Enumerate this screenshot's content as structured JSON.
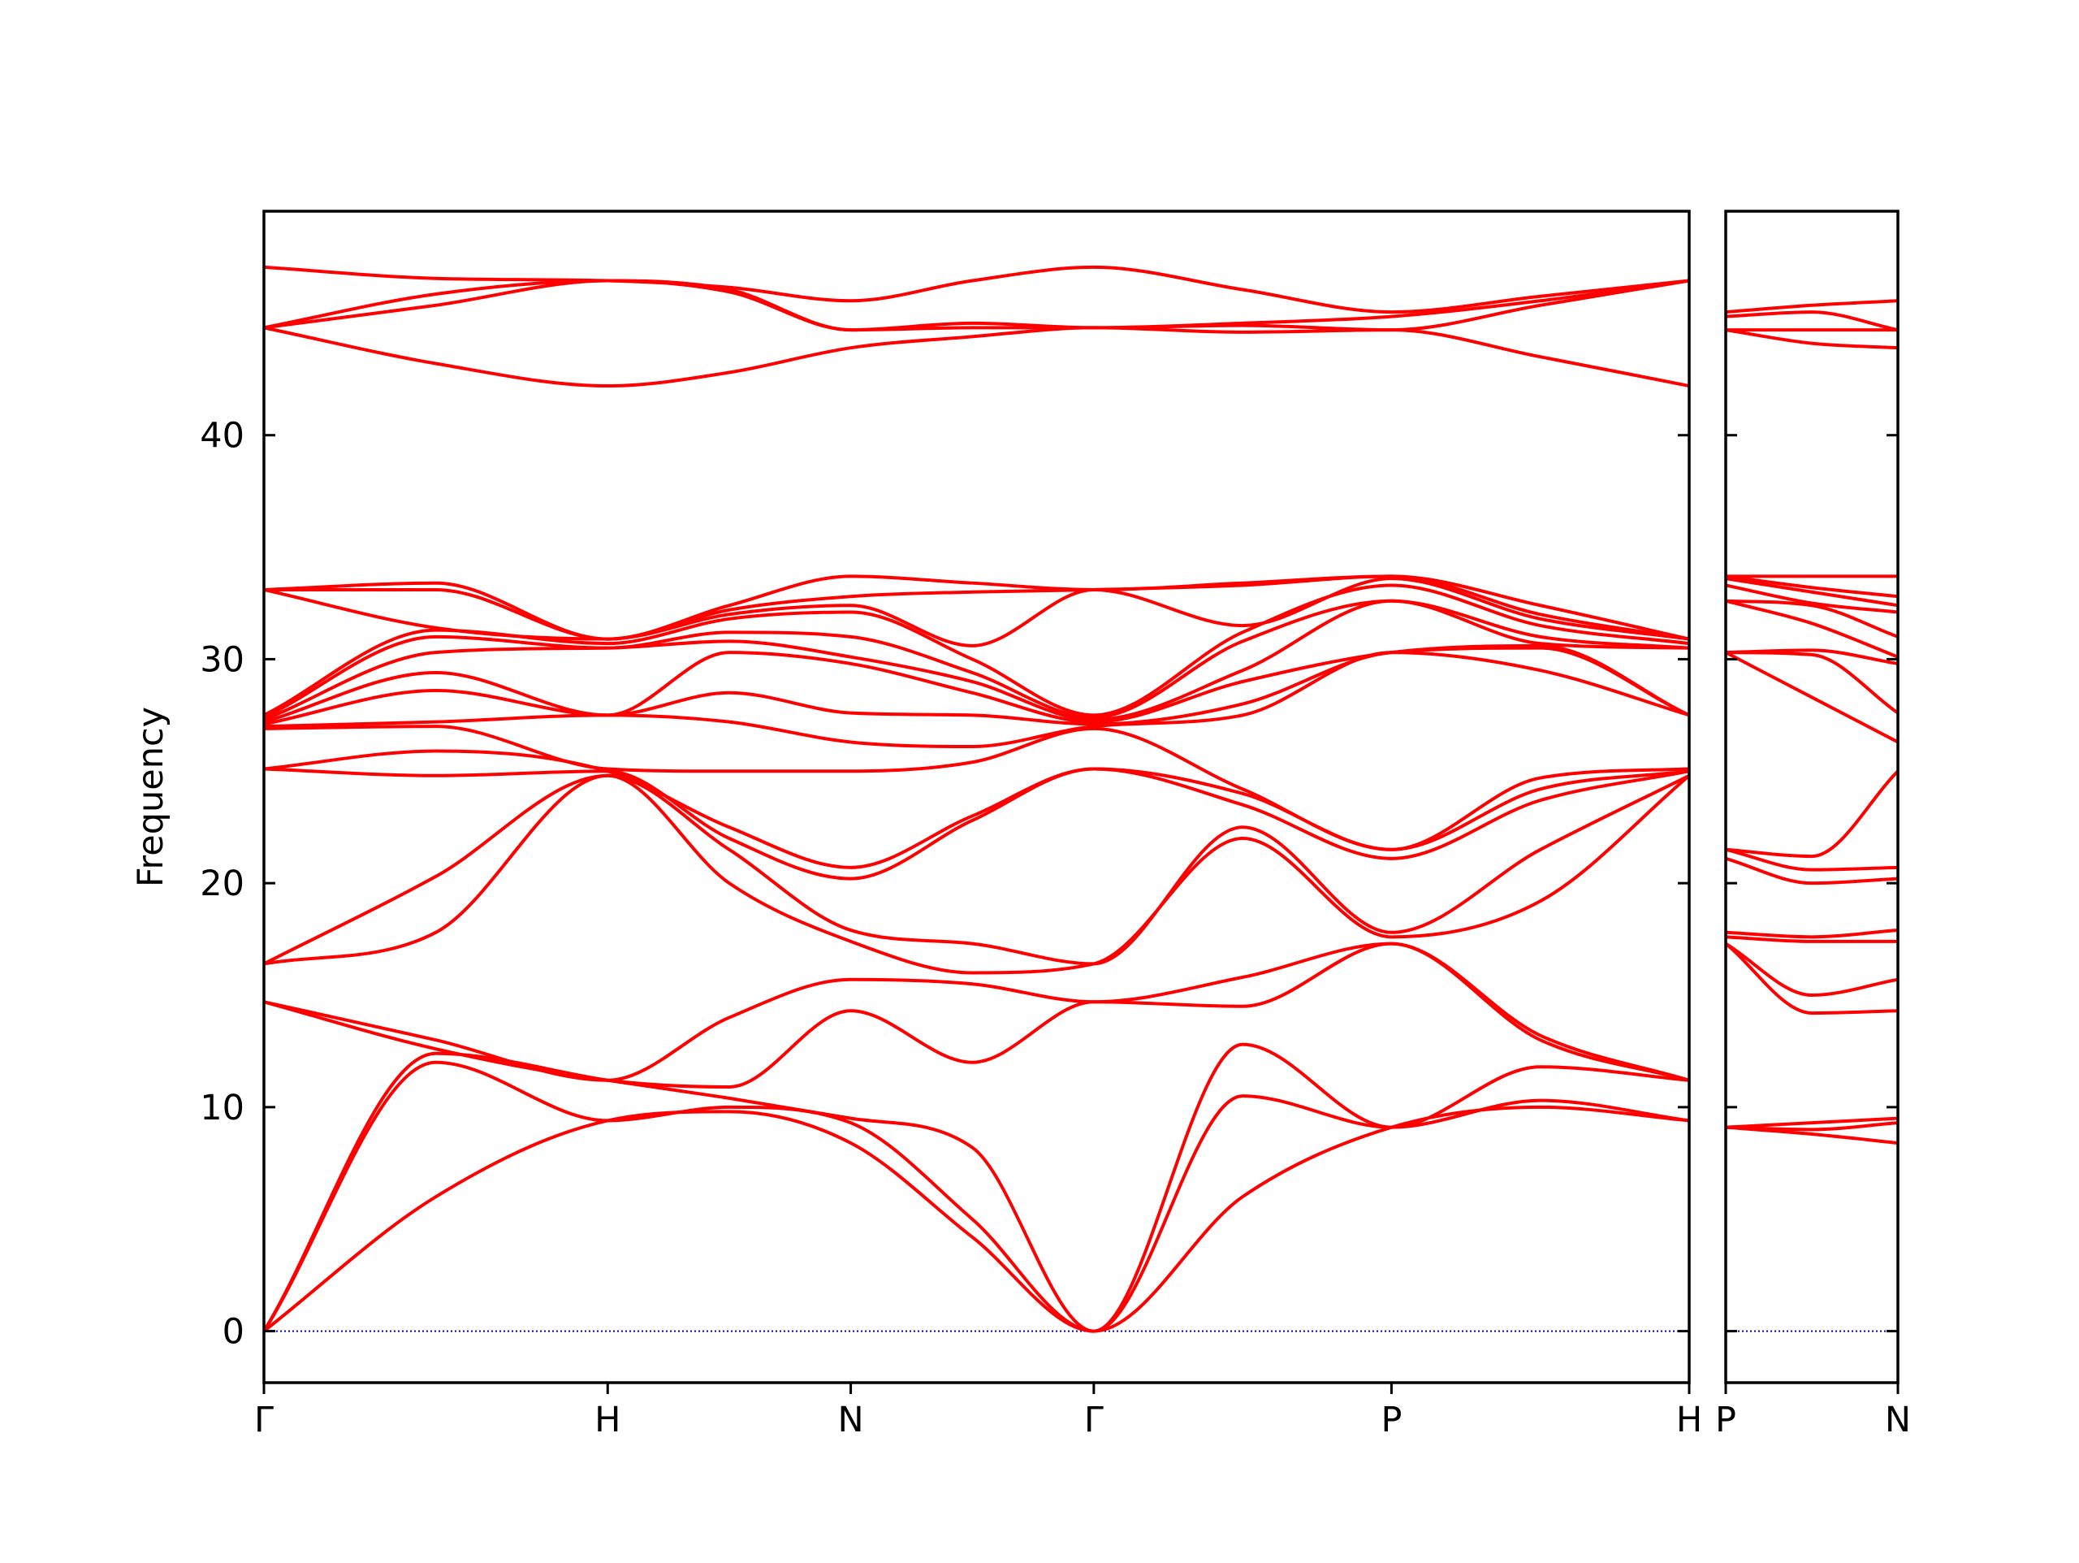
{
  "chart_data": [
    {
      "type": "line",
      "y_label": "Frequency",
      "color": "#ff0000",
      "reference_line": {
        "y": 0,
        "color": "#0000cc"
      },
      "xlim": [
        0,
        4.1463
      ],
      "ylim": [
        -2.3,
        50
      ],
      "yticks": [
        0,
        10,
        20,
        30,
        40
      ],
      "xticks": [
        {
          "value": 0,
          "label": "Γ"
        },
        {
          "value": 1,
          "label": "H"
        },
        {
          "value": 1.7071,
          "label": "N"
        },
        {
          "value": 2.4142,
          "label": "Γ"
        },
        {
          "value": 3.2802,
          "label": "P"
        },
        {
          "value": 4.1463,
          "label": "H"
        }
      ],
      "x": [
        0,
        0.5,
        1,
        1.3536,
        1.7071,
        2.0607,
        2.4142,
        2.8472,
        3.2802,
        3.7133,
        4.1463
      ],
      "series": [
        {
          "values": [
            0,
            6.0,
            9.4,
            9.8,
            8.4,
            4.2,
            0,
            6.0,
            9.1,
            10.0,
            9.4
          ]
        },
        {
          "values": [
            0,
            12.0,
            9.4,
            10.0,
            9.3,
            5.0,
            0,
            10.5,
            9.1,
            10.3,
            9.4
          ]
        },
        {
          "values": [
            0,
            12.4,
            11.2,
            10.4,
            9.5,
            8.2,
            0,
            12.8,
            9.1,
            11.8,
            11.2
          ]
        },
        {
          "values": [
            14.7,
            12.6,
            11.2,
            10.9,
            14.3,
            12.0,
            14.7,
            14.5,
            17.3,
            13.0,
            11.2
          ]
        },
        {
          "values": [
            14.7,
            13.0,
            11.2,
            14.0,
            15.7,
            15.5,
            14.7,
            15.8,
            17.3,
            13.2,
            11.2
          ]
        },
        {
          "values": [
            16.4,
            17.8,
            24.8,
            20.0,
            17.4,
            16.0,
            16.4,
            22.0,
            17.6,
            19.2,
            24.8
          ]
        },
        {
          "values": [
            16.4,
            20.3,
            24.8,
            21.5,
            17.9,
            17.3,
            16.4,
            22.5,
            17.8,
            21.5,
            24.8
          ]
        },
        {
          "values": [
            25.1,
            24.8,
            25.0,
            22.0,
            20.2,
            22.8,
            25.1,
            23.5,
            21.1,
            23.7,
            25.0
          ]
        },
        {
          "values": [
            25.1,
            25.9,
            25.0,
            22.5,
            20.7,
            23.0,
            25.1,
            24.0,
            21.5,
            24.2,
            25.0
          ]
        },
        {
          "values": [
            26.9,
            27.0,
            25.1,
            25.0,
            25.0,
            25.4,
            26.9,
            24.2,
            21.5,
            24.7,
            25.1
          ]
        },
        {
          "values": [
            27.0,
            27.2,
            27.5,
            27.2,
            26.3,
            26.1,
            27.0,
            27.5,
            30.3,
            29.5,
            27.5
          ]
        },
        {
          "values": [
            27.1,
            28.6,
            27.5,
            28.5,
            27.6,
            27.5,
            27.1,
            28.0,
            30.3,
            30.5,
            27.5
          ]
        },
        {
          "values": [
            27.2,
            29.4,
            27.5,
            30.3,
            29.8,
            28.5,
            27.2,
            29.0,
            30.3,
            30.6,
            27.5
          ]
        },
        {
          "values": [
            27.3,
            30.3,
            30.5,
            30.8,
            30.1,
            29.0,
            27.3,
            29.5,
            32.6,
            30.7,
            30.5
          ]
        },
        {
          "values": [
            27.4,
            31.0,
            30.5,
            31.2,
            31.0,
            29.4,
            27.4,
            30.8,
            32.6,
            31.0,
            30.5
          ]
        },
        {
          "values": [
            27.5,
            31.3,
            30.7,
            31.8,
            32.1,
            30.0,
            27.5,
            31.2,
            33.3,
            31.5,
            30.7
          ]
        },
        {
          "values": [
            33.1,
            31.4,
            30.9,
            32.0,
            32.4,
            30.6,
            33.1,
            31.5,
            33.6,
            31.8,
            30.9
          ]
        },
        {
          "values": [
            33.1,
            33.1,
            30.9,
            32.2,
            32.8,
            33.0,
            33.1,
            33.3,
            33.7,
            32.0,
            30.9
          ]
        },
        {
          "values": [
            33.1,
            33.4,
            30.9,
            32.4,
            33.7,
            33.4,
            33.1,
            33.4,
            33.7,
            32.4,
            30.9
          ]
        },
        {
          "values": [
            44.8,
            43.2,
            42.2,
            42.8,
            43.9,
            44.4,
            44.8,
            44.6,
            44.7,
            43.5,
            42.2
          ]
        },
        {
          "values": [
            44.8,
            45.8,
            46.9,
            46.4,
            44.7,
            44.8,
            44.8,
            44.9,
            44.7,
            45.8,
            46.9
          ]
        },
        {
          "values": [
            44.8,
            46.3,
            46.9,
            46.5,
            44.7,
            45.0,
            44.8,
            45.0,
            45.3,
            46.0,
            46.9
          ]
        },
        {
          "values": [
            47.5,
            47.0,
            46.9,
            46.6,
            46.0,
            46.9,
            47.5,
            46.5,
            45.5,
            46.2,
            46.9
          ]
        }
      ]
    },
    {
      "type": "line",
      "color": "#ff0000",
      "reference_line": {
        "y": 0,
        "color": "#0000cc"
      },
      "xlim": [
        0,
        0.5
      ],
      "ylim": [
        -2.3,
        50
      ],
      "xticks": [
        {
          "value": 0,
          "label": "P"
        },
        {
          "value": 0.5,
          "label": "N"
        }
      ],
      "x": [
        0,
        0.25,
        0.5
      ],
      "series": [
        {
          "values": [
            9.1,
            8.8,
            8.4
          ]
        },
        {
          "values": [
            9.1,
            9.0,
            9.3
          ]
        },
        {
          "values": [
            9.1,
            9.3,
            9.5
          ]
        },
        {
          "values": [
            17.3,
            14.2,
            14.3
          ]
        },
        {
          "values": [
            17.3,
            15.0,
            15.7
          ]
        },
        {
          "values": [
            17.6,
            17.4,
            17.4
          ]
        },
        {
          "values": [
            17.8,
            17.6,
            17.9
          ]
        },
        {
          "values": [
            21.1,
            20.0,
            20.2
          ]
        },
        {
          "values": [
            21.5,
            20.6,
            20.7
          ]
        },
        {
          "values": [
            21.5,
            21.2,
            25.0
          ]
        },
        {
          "values": [
            30.3,
            28.3,
            26.3
          ]
        },
        {
          "values": [
            30.3,
            30.2,
            27.6
          ]
        },
        {
          "values": [
            30.3,
            30.4,
            29.8
          ]
        },
        {
          "values": [
            32.6,
            31.6,
            30.1
          ]
        },
        {
          "values": [
            32.6,
            32.4,
            31.0
          ]
        },
        {
          "values": [
            33.3,
            32.5,
            32.1
          ]
        },
        {
          "values": [
            33.6,
            33.0,
            32.4
          ]
        },
        {
          "values": [
            33.7,
            33.2,
            32.8
          ]
        },
        {
          "values": [
            33.7,
            33.7,
            33.7
          ]
        },
        {
          "values": [
            44.7,
            44.1,
            43.9
          ]
        },
        {
          "values": [
            44.7,
            44.7,
            44.7
          ]
        },
        {
          "values": [
            45.3,
            45.5,
            44.7
          ]
        },
        {
          "values": [
            45.5,
            45.8,
            46.0
          ]
        }
      ]
    }
  ]
}
